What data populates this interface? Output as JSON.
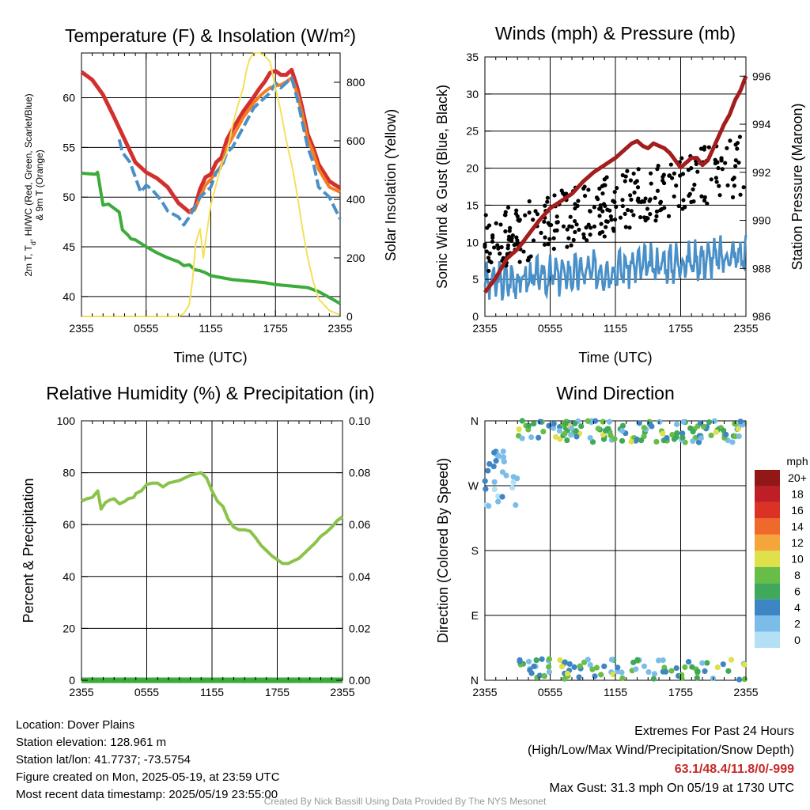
{
  "chart_data": [
    {
      "type": "line",
      "title": "Temperature (F) & Insolation (W/m²)",
      "ylabel_lines": [
        "2m T, Tₙ, HI/WC (Red, Green, Scarlet/Blue)",
        "& 9m T (Orange)"
      ],
      "ylabel_parts": [
        "2m T, T",
        "d",
        ", HI/WC (Red, Green, Scarlet/Blue)",
        "& 9m T (Orange)"
      ],
      "y2label": "Solar Insolation (Yellow)",
      "xlabel": "Time (UTC)",
      "xticks": [
        "2355",
        "0555",
        "1155",
        "1755",
        "2355"
      ],
      "xlim": [
        0,
        24
      ],
      "ylim": [
        38,
        64.5
      ],
      "yticks": [
        40,
        45,
        50,
        55,
        60
      ],
      "y2lim": [
        0,
        900
      ],
      "y2ticks": [
        0,
        200,
        400,
        600,
        800
      ],
      "series": [
        {
          "role": "dewpoint",
          "color": "#3cab3c",
          "x": [
            0,
            1.3,
            1.5,
            1.8,
            2.0,
            2.5,
            3.5,
            3.8,
            4.3,
            4.6,
            5,
            6,
            7,
            8,
            9,
            9.5,
            10,
            10.5,
            11,
            11.5,
            12,
            13,
            14,
            15,
            16,
            17,
            18,
            19,
            20,
            21,
            22,
            23,
            24
          ],
          "y": [
            52.4,
            52.3,
            52.5,
            50.5,
            49.2,
            49.3,
            48.5,
            46.7,
            46.2,
            45.8,
            45.7,
            45.0,
            44.4,
            43.9,
            43.5,
            43.1,
            43.2,
            42.7,
            42.6,
            42.4,
            42.1,
            41.9,
            41.7,
            41.6,
            41.5,
            41.4,
            41.2,
            41.1,
            41.0,
            40.9,
            40.5,
            39.9,
            39.3
          ]
        },
        {
          "role": "temp-2m",
          "color": "#d32f2f",
          "x": [
            0,
            1,
            2,
            3,
            4,
            5,
            6,
            7,
            8,
            9,
            10,
            10.5,
            11,
            11.5,
            12,
            12.5,
            13,
            13.5,
            14,
            15,
            16,
            16.5,
            17,
            17.5,
            18,
            18.5,
            19,
            19.5,
            20,
            20.5,
            21,
            21.5,
            22,
            23,
            24
          ],
          "y": [
            62.6,
            61.8,
            60.3,
            58.1,
            55.8,
            53.5,
            52.5,
            51.9,
            51.0,
            49.4,
            48.5,
            48.9,
            50.8,
            52.0,
            52.3,
            53.5,
            54.0,
            55.8,
            56.8,
            58.6,
            60.1,
            60.9,
            61.6,
            62.5,
            62.7,
            62.3,
            62.3,
            62.8,
            61.1,
            58.9,
            56.3,
            55.0,
            53.3,
            51.6,
            50.9
          ]
        },
        {
          "role": "temp-9m",
          "color": "#f57c21",
          "x": [
            10,
            10.5,
            11,
            11.5,
            12,
            12.5,
            13,
            13.5,
            14,
            15,
            16,
            16.5,
            17,
            17.5,
            18,
            18.5,
            19,
            19.5,
            20,
            20.5,
            21,
            21.5,
            22,
            23,
            24
          ],
          "y": [
            48.5,
            48.7,
            50.0,
            51.2,
            51.8,
            52.5,
            53.2,
            55.0,
            56.0,
            58.0,
            59.5,
            60.1,
            60.6,
            61.0,
            61.2,
            61.3,
            61.6,
            62.0,
            60.5,
            58.3,
            55.8,
            54.5,
            52.8,
            51.0,
            50.5
          ]
        },
        {
          "role": "heat-index",
          "color": "#4a90c8",
          "x": [
            3.5,
            3.8,
            4.5,
            5,
            5.5,
            6,
            6.5,
            7,
            7.5,
            8,
            8.5,
            9,
            9.5,
            10,
            10.5,
            11,
            11.5,
            12,
            12.5,
            13,
            13.5,
            14,
            15,
            16,
            16.5,
            17,
            17.5,
            18,
            18.5,
            19,
            19.5,
            20,
            20.5,
            21,
            21.5,
            22,
            23,
            24
          ],
          "y": [
            55.8,
            54.5,
            53.5,
            52.0,
            50.5,
            51.2,
            50.8,
            50.2,
            49.5,
            48.6,
            48.3,
            48.0,
            47.2,
            48.0,
            49.0,
            50.0,
            50.5,
            51.0,
            52.5,
            53.0,
            54.5,
            55.0,
            57.0,
            59.0,
            59.5,
            60.0,
            60.5,
            61.5,
            61.0,
            61.5,
            62.0,
            60.0,
            57.5,
            55.0,
            53.5,
            51.0,
            50.0,
            47.8
          ]
        },
        {
          "role": "insolation",
          "axis": "y2",
          "color": "#f5e05a",
          "x": [
            0,
            1,
            2,
            3,
            4,
            5,
            6,
            7,
            8,
            9,
            9.5,
            10,
            10.3,
            10.6,
            11,
            11.3,
            11.6,
            12,
            12.5,
            13,
            13.5,
            14,
            14.5,
            15,
            15.3,
            15.6,
            16,
            16.5,
            17,
            17.5,
            18,
            18.5,
            19,
            19.5,
            20,
            20.5,
            21,
            21.5,
            22,
            23,
            24
          ],
          "y": [
            0,
            0,
            0,
            0,
            0,
            0,
            0,
            0,
            0,
            0,
            10,
            40,
            120,
            250,
            300,
            200,
            280,
            380,
            450,
            520,
            560,
            650,
            720,
            780,
            840,
            880,
            900,
            900,
            890,
            870,
            780,
            700,
            600,
            520,
            420,
            300,
            200,
            120,
            60,
            20,
            5
          ]
        }
      ]
    },
    {
      "type": "scatter",
      "title": "Winds (mph) & Pressure (mb)",
      "ylabel": "Sonic Wind & Gust (Blue, Black)",
      "y2label": "Station Pressure (Maroon)",
      "xlabel": "Time (UTC)",
      "xticks": [
        "2355",
        "0555",
        "1155",
        "1755",
        "2355"
      ],
      "xlim": [
        0,
        24
      ],
      "ylim": [
        0,
        35
      ],
      "yticks": [
        0,
        5,
        10,
        15,
        20,
        25,
        30,
        35
      ],
      "y2lim": [
        986,
        996.8
      ],
      "y2ticks": [
        986,
        988,
        990,
        992,
        994,
        996
      ],
      "series": [
        {
          "name": "",
          "role": "pressure",
          "axis": "y2",
          "color": "#a31d1d",
          "x": [
            0,
            1,
            2,
            3,
            4,
            5,
            6,
            7,
            8,
            9,
            10,
            11,
            12,
            12.5,
            13,
            13.5,
            14,
            14.5,
            15,
            15.5,
            16,
            16.5,
            17,
            17.5,
            18,
            18.5,
            19,
            19.5,
            20,
            20.5,
            21,
            21.5,
            22,
            22.5,
            23,
            23.5,
            24
          ],
          "y": [
            987.0,
            987.6,
            988.4,
            988.8,
            989.4,
            990.0,
            990.5,
            990.8,
            991.1,
            991.6,
            992.0,
            992.3,
            992.6,
            992.8,
            993.0,
            993.2,
            993.3,
            993.1,
            993.0,
            993.2,
            993.1,
            993.0,
            992.8,
            992.5,
            992.2,
            992.4,
            992.6,
            992.6,
            992.3,
            992.5,
            993.0,
            993.5,
            994.0,
            994.4,
            995.0,
            995.4,
            996.0
          ]
        },
        {
          "name": "",
          "role": "gust",
          "color": "#000000",
          "seed": 7
        },
        {
          "name": "",
          "role": "wind",
          "color": "#4a90c8",
          "seed": 3
        }
      ]
    },
    {
      "type": "line",
      "title": "Relative Humidity (%) & Precipitation (in)",
      "ylabel": "Percent & Precipitation",
      "xticks": [
        "2355",
        "0555",
        "1155",
        "1755",
        "2355"
      ],
      "xlim": [
        0,
        24
      ],
      "ylim": [
        0,
        100
      ],
      "yticks": [
        0,
        20,
        40,
        60,
        80,
        100
      ],
      "y2lim": [
        0,
        0.1
      ],
      "y2ticks": [
        "0.00",
        "0.02",
        "0.04",
        "0.06",
        "0.08",
        "0.10"
      ],
      "series": [
        {
          "role": "humidity",
          "color": "#8bc34a",
          "x": [
            0,
            0.5,
            1,
            1.5,
            1.8,
            2.2,
            2.6,
            3,
            3.5,
            4,
            4.3,
            4.8,
            5,
            5.5,
            6,
            6.5,
            7,
            7.5,
            8,
            8.5,
            9,
            9.5,
            10,
            10.5,
            11,
            11.5,
            12,
            12.5,
            13,
            13.5,
            14,
            14.5,
            15,
            15.5,
            16,
            16.5,
            17,
            17.5,
            18,
            18.5,
            19,
            19.5,
            20,
            20.5,
            21,
            21.5,
            22,
            22.5,
            23,
            23.5,
            24
          ],
          "y": [
            69,
            70,
            70.5,
            73,
            66,
            68.5,
            69.5,
            70,
            68,
            69,
            70,
            70.5,
            72,
            73,
            75.5,
            76,
            76,
            74.5,
            76,
            76.5,
            77,
            78,
            79,
            79.5,
            80,
            78,
            73,
            69,
            67,
            62,
            59,
            58,
            58,
            57.5,
            55,
            52,
            50,
            48,
            46.5,
            45,
            45,
            46,
            47,
            49,
            51,
            53,
            55.5,
            57,
            59,
            61.5,
            63
          ]
        },
        {
          "role": "precipitation",
          "axis": "y2",
          "color": "#3cab3c",
          "x": [
            0,
            24
          ],
          "y": [
            0,
            0
          ]
        }
      ]
    },
    {
      "type": "scatter",
      "title": "Wind Direction",
      "ylabel": "Direction (Colored By Speed)",
      "xticks": [
        "2355",
        "0555",
        "1155",
        "1755",
        "2355"
      ],
      "xlim": [
        0,
        24
      ],
      "yticks": [
        "N",
        "E",
        "S",
        "W",
        "N"
      ],
      "ylim": [
        0,
        360
      ],
      "colorbar": {
        "label": "mph",
        "levels": [
          "0",
          "2",
          "4",
          "6",
          "8",
          "10",
          "12",
          "14",
          "16",
          "18",
          "20+"
        ],
        "colors": [
          "#b3e0f5",
          "#7bbde8",
          "#3e85c4",
          "#3fa85a",
          "#67bd45",
          "#dfe04a",
          "#f5a63a",
          "#ef6a2a",
          "#dc3226",
          "#be1e26",
          "#921818"
        ]
      },
      "series": [
        {
          "name": "",
          "role": "direction",
          "seed": 11
        }
      ]
    }
  ],
  "info": {
    "location": "Location: Dover Plains",
    "elevation": "Station elevation: 128.961 m",
    "latlon": "Station lat/lon: 41.7737; -73.5754",
    "created": "Figure created on Mon, 2025-05-19, at 23:59 UTC",
    "recent": "Most recent data timestamp: 2025/05/19 23:55:00"
  },
  "extremes": {
    "heading": "Extremes For Past 24 Hours",
    "subheading": "(High/Low/Max Wind/Precipitation/Snow Depth)",
    "values": "63.1/48.4/11.8/0/-999",
    "max_gust": "Max Gust: 31.3 mph On 05/19 at 1730 UTC"
  },
  "credit": "Created By Nick Bassill Using Data Provided By The NYS Mesonet"
}
